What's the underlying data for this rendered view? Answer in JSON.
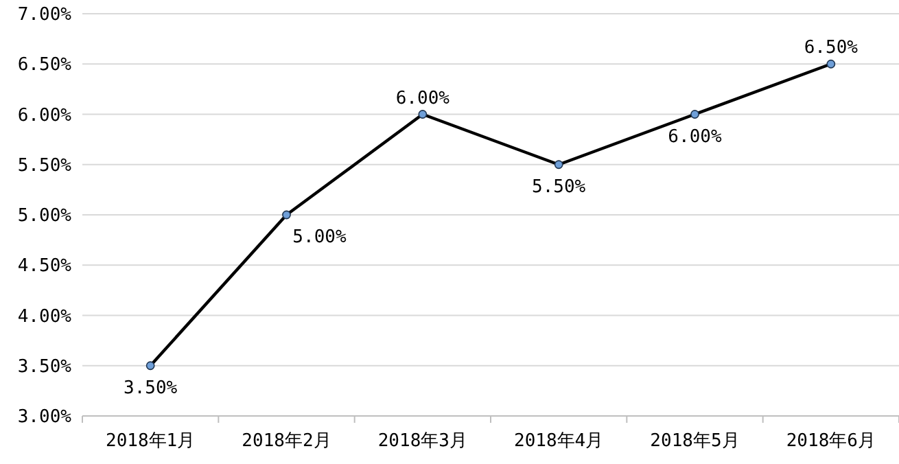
{
  "chart_data": {
    "type": "line",
    "categories": [
      "2018年1月",
      "2018年2月",
      "2018年3月",
      "2018年4月",
      "2018年5月",
      "2018年6月"
    ],
    "series": [
      {
        "color": "#000000",
        "values": [
          3.5,
          5.0,
          6.0,
          5.5,
          6.0,
          6.5
        ],
        "value_labels": [
          "3.50%",
          "5.00%",
          "6.00%",
          "5.50%",
          "6.00%",
          "6.50%"
        ]
      }
    ],
    "ylim": [
      3,
      7
    ],
    "yticks": [
      {
        "value": 3,
        "label": "3.00%"
      },
      {
        "value": 3.5,
        "label": "3.50%"
      },
      {
        "value": 4,
        "label": "4.00%"
      },
      {
        "value": 4.5,
        "label": "4.50%"
      },
      {
        "value": 5,
        "label": "5.00%"
      },
      {
        "value": 5.5,
        "label": "5.50%"
      },
      {
        "value": 6,
        "label": "6.00%"
      },
      {
        "value": 6.5,
        "label": "6.50%"
      },
      {
        "value": 7,
        "label": "7.00%"
      }
    ],
    "grid": "y",
    "marker": "circle",
    "line_style": "solid"
  }
}
